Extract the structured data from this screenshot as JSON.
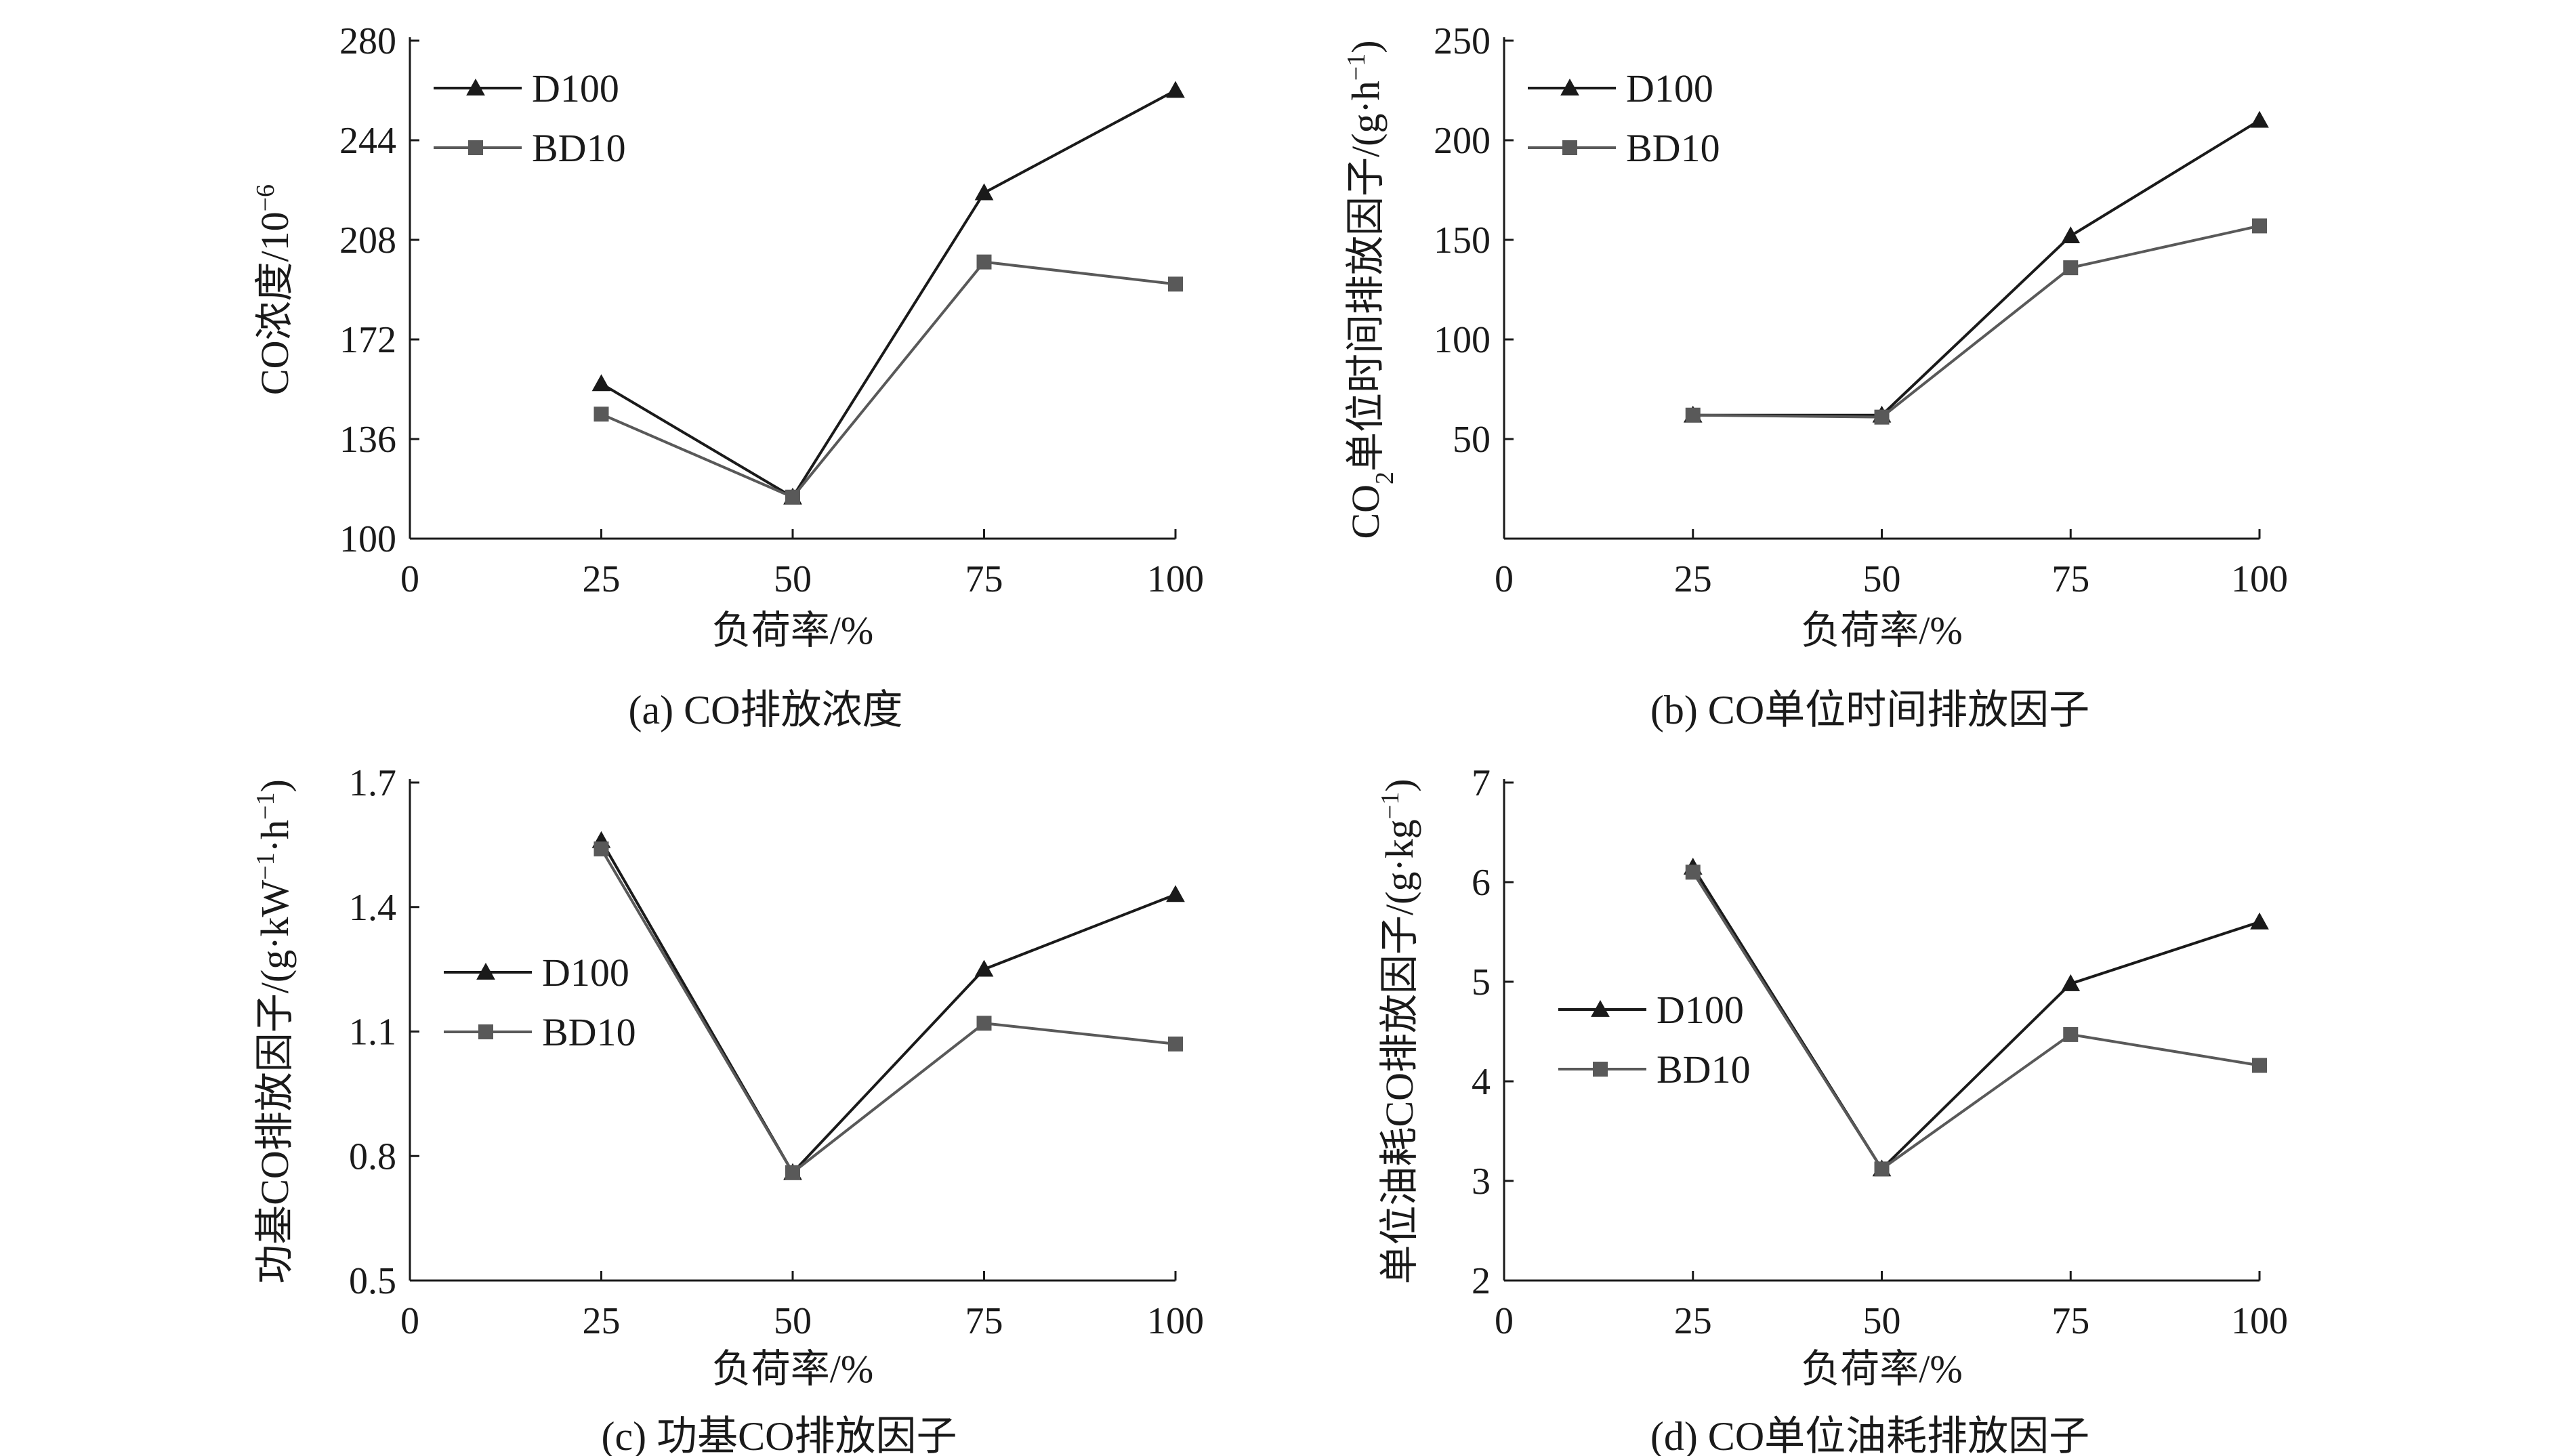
{
  "chart_data": [
    {
      "type": "line",
      "caption": "(a) CO排放浓度",
      "xlabel": "负荷率/%",
      "ylabel": "CO浓度/10",
      "ylabel_sup": "−6",
      "x": [
        25,
        50,
        75,
        100
      ],
      "xlim": [
        0,
        100
      ],
      "xticks": [
        "0",
        "25",
        "50",
        "75",
        "100"
      ],
      "ylim": [
        100,
        280
      ],
      "yticks": [
        "100",
        "136",
        "172",
        "208",
        "244",
        "280"
      ],
      "legend_position": "top-left",
      "series": [
        {
          "name": "D100",
          "marker": "triangle",
          "color": "#1a1a1a",
          "values": [
            156,
            115,
            225,
            262
          ]
        },
        {
          "name": "BD10",
          "marker": "square",
          "color": "#595959",
          "values": [
            145,
            115,
            200,
            192
          ]
        }
      ]
    },
    {
      "type": "line",
      "caption": "(b) CO单位时间排放因子",
      "xlabel": "负荷率/%",
      "ylabel_pre": "CO",
      "ylabel_sub": "2",
      "ylabel_mid": "单位时间排放因子/(g·h",
      "ylabel_sup": "−1",
      "ylabel_post": ")",
      "x": [
        25,
        50,
        75,
        100
      ],
      "xlim": [
        0,
        100
      ],
      "xticks": [
        "0",
        "25",
        "50",
        "75",
        "100"
      ],
      "ylim": [
        0,
        250
      ],
      "yticks": [
        "50",
        "100",
        "150",
        "200",
        "250"
      ],
      "legend_position": "top-left",
      "series": [
        {
          "name": "D100",
          "marker": "triangle",
          "color": "#1a1a1a",
          "values": [
            62,
            62,
            152,
            210
          ]
        },
        {
          "name": "BD10",
          "marker": "square",
          "color": "#595959",
          "values": [
            62,
            61,
            136,
            157
          ]
        }
      ]
    },
    {
      "type": "line",
      "caption": "(c) 功基CO排放因子",
      "xlabel": "负荷率/%",
      "ylabel": "功基CO排放因子/(g·kW",
      "ylabel_sup": "−1",
      "ylabel_mid": "·h",
      "ylabel_sup2": "−1",
      "ylabel_post": ")",
      "x": [
        25,
        50,
        75,
        100
      ],
      "xlim": [
        0,
        100
      ],
      "xticks": [
        "0",
        "25",
        "50",
        "75",
        "100"
      ],
      "ylim": [
        0.5,
        1.7
      ],
      "yticks": [
        "0.5",
        "0.8",
        "1.1",
        "1.4",
        "1.7"
      ],
      "legend_position": "middle-left",
      "series": [
        {
          "name": "D100",
          "marker": "triangle",
          "color": "#1a1a1a",
          "values": [
            1.56,
            0.76,
            1.25,
            1.43
          ]
        },
        {
          "name": "BD10",
          "marker": "square",
          "color": "#595959",
          "values": [
            1.54,
            0.76,
            1.12,
            1.07
          ]
        }
      ]
    },
    {
      "type": "line",
      "caption": "(d) CO单位油耗排放因子",
      "xlabel": "负荷率/%",
      "ylabel": "单位油耗CO排放因子/(g·kg",
      "ylabel_sup": "−1",
      "ylabel_post": ")",
      "x": [
        25,
        50,
        75,
        100
      ],
      "xlim": [
        0,
        100
      ],
      "xticks": [
        "0",
        "25",
        "50",
        "75",
        "100"
      ],
      "ylim": [
        2,
        7
      ],
      "yticks": [
        "2",
        "3",
        "4",
        "5",
        "6",
        "7"
      ],
      "legend_position": "middle-left",
      "series": [
        {
          "name": "D100",
          "marker": "triangle",
          "color": "#1a1a1a",
          "values": [
            6.15,
            3.12,
            4.98,
            5.6
          ]
        },
        {
          "name": "BD10",
          "marker": "square",
          "color": "#595959",
          "values": [
            6.1,
            3.12,
            4.47,
            4.16
          ]
        }
      ]
    }
  ]
}
